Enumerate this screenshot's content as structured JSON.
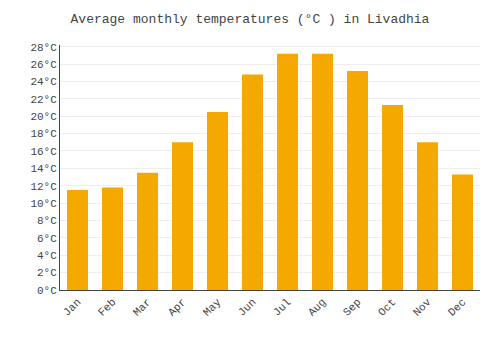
{
  "chart_data": {
    "type": "bar",
    "title": "Average monthly temperatures (°C ) in Livadhia",
    "categories": [
      "Jan",
      "Feb",
      "Mar",
      "Apr",
      "May",
      "Jun",
      "Jul",
      "Aug",
      "Sep",
      "Oct",
      "Nov",
      "Dec"
    ],
    "values": [
      11.5,
      11.8,
      13.5,
      17.0,
      20.5,
      24.8,
      27.2,
      27.2,
      25.2,
      21.3,
      17.0,
      13.3
    ],
    "color": "#F5A800",
    "ylim": [
      0,
      28.2
    ],
    "yticks": [
      {
        "value": 0,
        "label": "0°C"
      },
      {
        "value": 2,
        "label": "2°C"
      },
      {
        "value": 4,
        "label": "4°C"
      },
      {
        "value": 6,
        "label": "6°C"
      },
      {
        "value": 8,
        "label": "8°C"
      },
      {
        "value": 10,
        "label": "10°C"
      },
      {
        "value": 12,
        "label": "12°C"
      },
      {
        "value": 14,
        "label": "14°C"
      },
      {
        "value": 16,
        "label": "16°C"
      },
      {
        "value": 18,
        "label": "18°C"
      },
      {
        "value": 20,
        "label": "20°C"
      },
      {
        "value": 22,
        "label": "22°C"
      },
      {
        "value": 24,
        "label": "24°C"
      },
      {
        "value": 26,
        "label": "26°C"
      },
      {
        "value": 28,
        "label": "28°C"
      }
    ],
    "grid": true
  }
}
